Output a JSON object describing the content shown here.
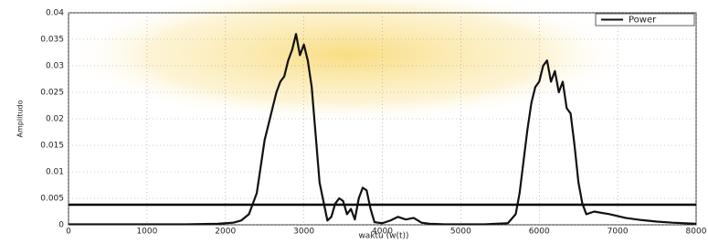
{
  "chart_data": {
    "type": "line",
    "x_label": "waktu (w(t))",
    "y_label": "Amplitudo",
    "xlim": [
      0,
      8000
    ],
    "xticks": [
      0,
      1000,
      2000,
      3000,
      4000,
      5000,
      6000,
      7000,
      8000
    ],
    "ylim": [
      0,
      0.04
    ],
    "yticks": [
      0,
      0.005,
      0.01,
      0.015,
      0.02,
      0.025,
      0.03,
      0.035,
      0.04
    ],
    "grid": true,
    "legend": "top-right",
    "reference_line": 0.0038,
    "series": [
      {
        "name": "Power",
        "color": "#111111",
        "x": [
          0,
          500,
          1000,
          1500,
          1900,
          2100,
          2200,
          2300,
          2400,
          2450,
          2500,
          2550,
          2600,
          2650,
          2700,
          2750,
          2800,
          2850,
          2900,
          2950,
          3000,
          3050,
          3100,
          3150,
          3200,
          3300,
          3350,
          3400,
          3450,
          3500,
          3550,
          3600,
          3650,
          3700,
          3750,
          3800,
          3850,
          3900,
          3950,
          4000,
          4100,
          4200,
          4300,
          4400,
          4500,
          4600,
          4800,
          5000,
          5300,
          5600,
          5700,
          5750,
          5800,
          5850,
          5900,
          5950,
          6000,
          6050,
          6100,
          6150,
          6200,
          6250,
          6300,
          6350,
          6400,
          6450,
          6500,
          6550,
          6600,
          6700,
          6900,
          7100,
          7300,
          7500,
          7700,
          8000
        ],
        "values": [
          0.0001,
          0.0001,
          0.0001,
          0.0001,
          0.0002,
          0.0004,
          0.0008,
          0.002,
          0.006,
          0.011,
          0.016,
          0.019,
          0.022,
          0.025,
          0.027,
          0.028,
          0.031,
          0.033,
          0.036,
          0.032,
          0.034,
          0.031,
          0.026,
          0.017,
          0.008,
          0.0008,
          0.0015,
          0.004,
          0.005,
          0.0045,
          0.002,
          0.003,
          0.001,
          0.005,
          0.007,
          0.0065,
          0.003,
          0.0005,
          0.0004,
          0.0003,
          0.0008,
          0.0015,
          0.001,
          0.0013,
          0.0004,
          0.0002,
          0.0001,
          0.0001,
          0.0001,
          0.0003,
          0.002,
          0.006,
          0.012,
          0.018,
          0.023,
          0.026,
          0.027,
          0.03,
          0.031,
          0.027,
          0.029,
          0.025,
          0.027,
          0.022,
          0.021,
          0.015,
          0.008,
          0.004,
          0.002,
          0.0025,
          0.002,
          0.0013,
          0.0009,
          0.0006,
          0.0004,
          0.0002
        ]
      }
    ]
  }
}
